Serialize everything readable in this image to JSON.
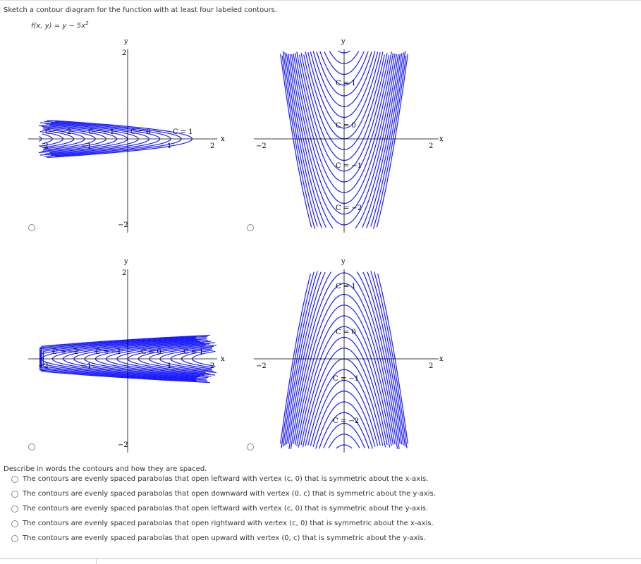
{
  "question": {
    "prompt": "Sketch a contour diagram for the function with at least four labeled contours.",
    "function_text": "f(x, y) = y − 5x",
    "function_exp": "2"
  },
  "plots": [
    {
      "id": "A",
      "labels": [
        "C = −2",
        "C = −1",
        "C = 0",
        "C = 1"
      ]
    },
    {
      "id": "B",
      "labels": [
        "C = 1",
        "C = 0",
        "C = −1",
        "C = −2"
      ]
    },
    {
      "id": "C",
      "labels": [
        "C = −2",
        "C = −1",
        "C = 0",
        "C = 1"
      ]
    },
    {
      "id": "D",
      "labels": [
        "C = 1",
        "C = 0",
        "C = −1",
        "C = −2"
      ]
    }
  ],
  "axes": {
    "x": "x",
    "y": "y",
    "ticks": [
      "−2",
      "−1",
      "1",
      "2"
    ]
  },
  "part2": {
    "prompt": "Describe in words the contours and how they are spaced.",
    "options": [
      "The contours are evenly spaced parabolas that open leftward with vertex (c, 0) that is symmetric about the x-axis.",
      "The contours are evenly spaced parabolas that open downward with vertex (0, c) that is symmetric about the y-axis.",
      "The contours are evenly spaced parabolas that open leftward with vertex (c, 0) that is symmetric about the y-axis.",
      "The contours are evenly spaced parabolas that open rightward with vertex (c, 0) that is symmetric about the x-axis.",
      "The contours are evenly spaced parabolas that open upward with vertex (0, c) that is symmetric about the y-axis."
    ]
  },
  "colors": {
    "contour": "#1a1aff",
    "axis": "#000000",
    "text": "#333333"
  }
}
